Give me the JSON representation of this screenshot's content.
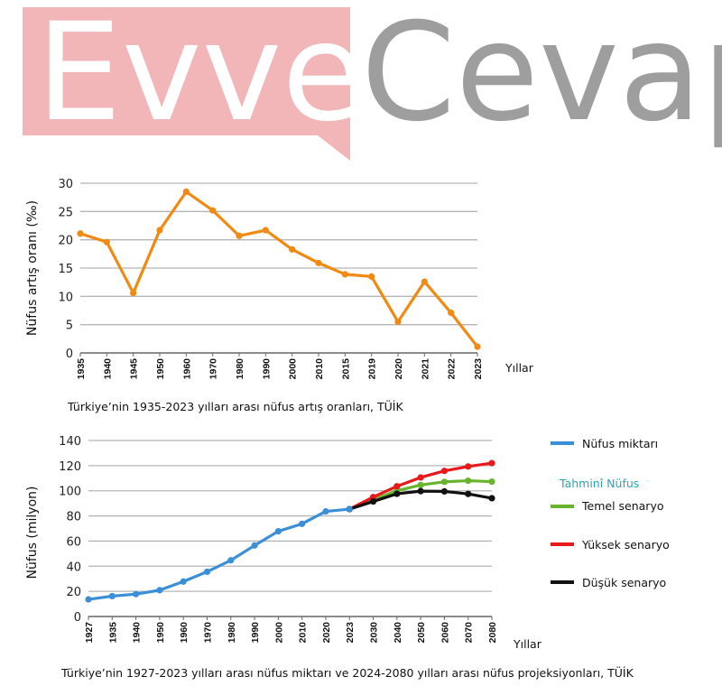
{
  "watermark": {
    "left_text": "Evvel",
    "right_text": "Cevap",
    "box_color": "#f2b6b8",
    "text_gray": "#9e9e9e"
  },
  "chart_data": [
    {
      "type": "line",
      "title": "Türkiye’nin 1935-2023 yılları arası nüfus artış oranları, TÜİK",
      "xlabel": "Yıllar",
      "ylabel": "Nüfus artış oranı (‰)",
      "ylim": [
        0,
        30
      ],
      "yticks": [
        0,
        5,
        10,
        15,
        20,
        25,
        30
      ],
      "grid": true,
      "categories": [
        "1935",
        "1940",
        "1945",
        "1950",
        "1960",
        "1970",
        "1980",
        "1990",
        "2000",
        "2010",
        "2015",
        "2019",
        "2020",
        "2021",
        "2022",
        "2023"
      ],
      "series": [
        {
          "name": "Nüfus artış oranı",
          "color": "#f18a12",
          "values": [
            21.1,
            19.6,
            10.6,
            21.7,
            28.5,
            25.2,
            20.7,
            21.7,
            18.3,
            15.9,
            13.9,
            13.5,
            5.5,
            12.6,
            7.1,
            1.1
          ]
        }
      ]
    },
    {
      "type": "line",
      "title": "Türkiye’nin 1927-2023 yılları arası nüfus miktarı ve 2024-2080 yılları arası nüfus projeksiyonları, TÜİK",
      "xlabel": "Yıllar",
      "ylabel": "Nüfus (milyon)",
      "ylim": [
        0,
        140
      ],
      "yticks": [
        0,
        20,
        40,
        60,
        80,
        100,
        120,
        140
      ],
      "grid": true,
      "categories": [
        "1927",
        "1935",
        "1940",
        "1950",
        "1960",
        "1970",
        "1980",
        "1990",
        "2000",
        "2010",
        "2020",
        "2023",
        "2030",
        "2040",
        "2050",
        "2060",
        "2070",
        "2080"
      ],
      "legend_heading": "Tahminî Nüfus",
      "legend_position": "right",
      "series": [
        {
          "name": "Nüfus miktarı",
          "color": "#3a8fd6",
          "values": [
            13.6,
            16.2,
            17.8,
            20.9,
            27.8,
            35.6,
            44.7,
            56.5,
            67.8,
            73.7,
            83.6,
            85.4,
            null,
            null,
            null,
            null,
            null,
            null
          ]
        },
        {
          "name": "Temel senaryo",
          "color": "#6ab42d",
          "values": [
            null,
            null,
            null,
            null,
            null,
            null,
            null,
            null,
            null,
            null,
            null,
            85.4,
            93.0,
            100.0,
            104.6,
            107.1,
            108.0,
            107.3
          ]
        },
        {
          "name": "Yüksek senaryo",
          "color": "#e8191a",
          "values": [
            null,
            null,
            null,
            null,
            null,
            null,
            null,
            null,
            null,
            null,
            null,
            85.4,
            95.0,
            103.6,
            110.6,
            115.8,
            119.3,
            122.0
          ]
        },
        {
          "name": "Düşük senaryo",
          "color": "#111111",
          "values": [
            null,
            null,
            null,
            null,
            null,
            null,
            null,
            null,
            null,
            null,
            null,
            85.4,
            91.5,
            97.6,
            99.7,
            99.5,
            97.5,
            94.1
          ]
        }
      ]
    }
  ]
}
